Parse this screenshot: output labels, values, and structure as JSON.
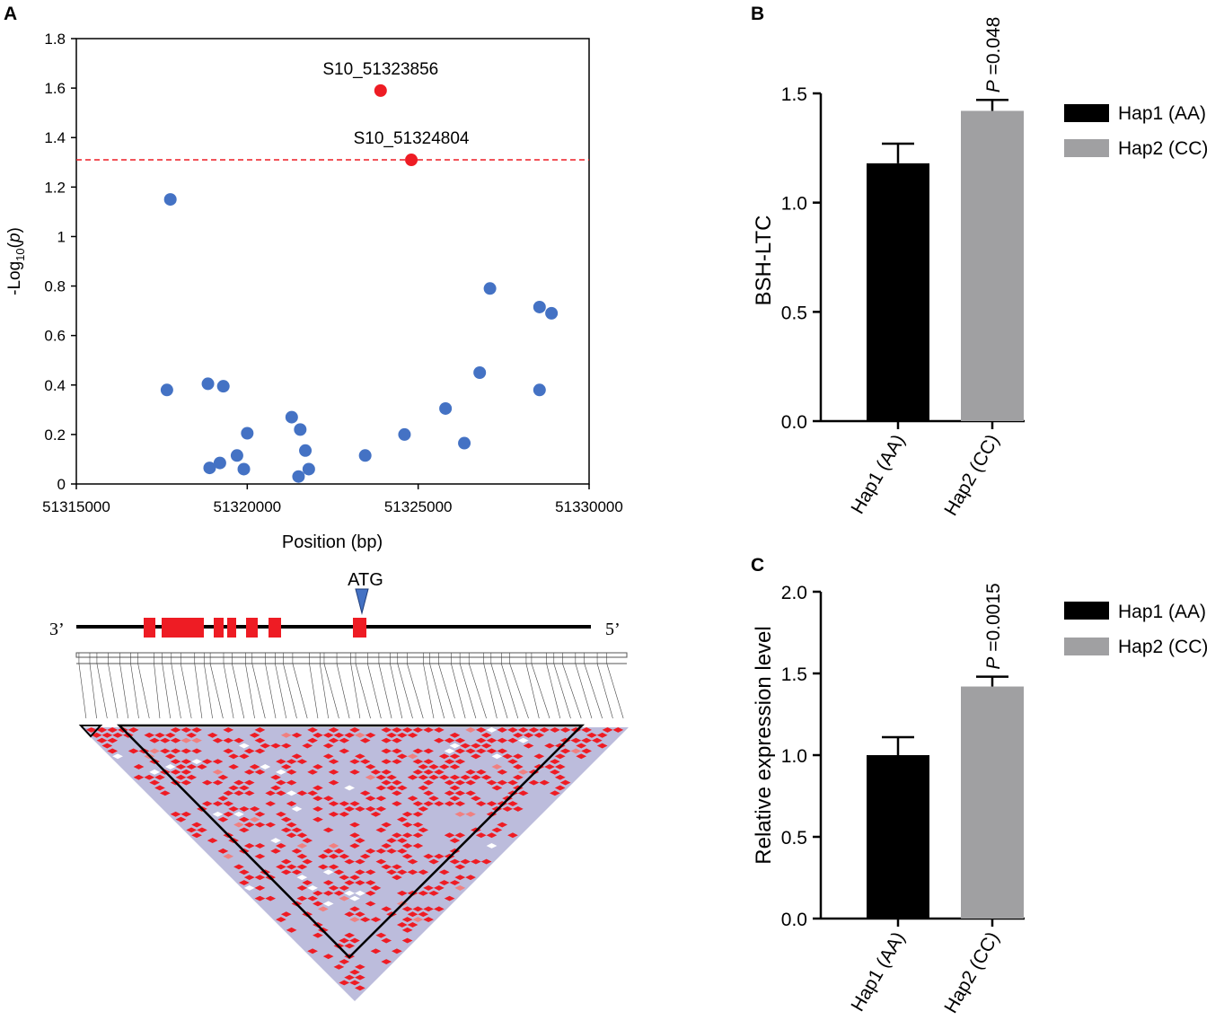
{
  "panels": {
    "a": "A",
    "b": "B",
    "c": "C"
  },
  "colors": {
    "blue": "#4472c4",
    "red": "#ee1c24",
    "hap1": "#000000",
    "hap2": "#a0a0a2",
    "ld_bg": "#bcbcdc",
    "ld_red": "#ee1c24",
    "ld_pink": "#f08080"
  },
  "gene": {
    "left_label": "3’",
    "right_label": "5’",
    "atg_label": "ATG"
  },
  "chart_data": [
    {
      "id": "manhattan",
      "type": "scatter",
      "xlabel": "Position (bp)",
      "ylabel": {
        "prefix": "-Log",
        "sub": "10",
        "mid": "(",
        "italic": "p",
        "suffix": ")"
      },
      "xlim": [
        51315000,
        51330000
      ],
      "ylim": [
        0,
        1.8
      ],
      "xticks": [
        51315000,
        51320000,
        51325000,
        51330000
      ],
      "xtick_labels": [
        "51315000",
        "51320000",
        "51325000",
        "51330000"
      ],
      "yticks": [
        0,
        0.2,
        0.4,
        0.6,
        0.8,
        1,
        1.2,
        1.4,
        1.6,
        1.8
      ],
      "ytick_labels": [
        "0",
        "0.2",
        "0.4",
        "0.6",
        "0.8",
        "1",
        "1.2",
        "1.4",
        "1.6",
        "1.8"
      ],
      "threshold": 1.31,
      "points": [
        {
          "x": 51317750,
          "y": 1.15
        },
        {
          "x": 51317650,
          "y": 0.38
        },
        {
          "x": 51318850,
          "y": 0.405
        },
        {
          "x": 51319300,
          "y": 0.395
        },
        {
          "x": 51318900,
          "y": 0.065
        },
        {
          "x": 51319200,
          "y": 0.085
        },
        {
          "x": 51319700,
          "y": 0.115
        },
        {
          "x": 51319900,
          "y": 0.06
        },
        {
          "x": 51320000,
          "y": 0.205
        },
        {
          "x": 51321300,
          "y": 0.27
        },
        {
          "x": 51321550,
          "y": 0.22
        },
        {
          "x": 51321700,
          "y": 0.135
        },
        {
          "x": 51321800,
          "y": 0.06
        },
        {
          "x": 51321500,
          "y": 0.03
        },
        {
          "x": 51323450,
          "y": 0.115
        },
        {
          "x": 51324600,
          "y": 0.2
        },
        {
          "x": 51325800,
          "y": 0.305
        },
        {
          "x": 51326350,
          "y": 0.165
        },
        {
          "x": 51326800,
          "y": 0.45
        },
        {
          "x": 51327100,
          "y": 0.79
        },
        {
          "x": 51328550,
          "y": 0.715
        },
        {
          "x": 51328900,
          "y": 0.69
        },
        {
          "x": 51328550,
          "y": 0.38
        }
      ],
      "highlights": [
        {
          "x": 51323900,
          "y": 1.59,
          "label": "S10_51323856"
        },
        {
          "x": 51324800,
          "y": 1.31,
          "label": "S10_51324804"
        }
      ]
    },
    {
      "id": "bsh",
      "type": "bar",
      "ylabel": "BSH-LTC",
      "categories": [
        "Hap1 (AA)",
        "Hap2 (CC)"
      ],
      "values": [
        1.18,
        1.42
      ],
      "errors": [
        0.09,
        0.05
      ],
      "ylim": [
        0,
        1.5
      ],
      "yticks": [
        0,
        0.5,
        1.0,
        1.5
      ],
      "ytick_labels": [
        "0.0",
        "0.5",
        "1.0",
        "1.5"
      ],
      "p_italic": "P",
      "p_value": " =0.048",
      "legend": [
        "Hap1 (AA)",
        "Hap2 (CC)"
      ]
    },
    {
      "id": "expr",
      "type": "bar",
      "ylabel": "Relative expression level",
      "categories": [
        "Hap1 (AA)",
        "Hap2 (CC)"
      ],
      "values": [
        1.0,
        1.42
      ],
      "errors": [
        0.11,
        0.06
      ],
      "ylim": [
        0,
        2.0
      ],
      "yticks": [
        0,
        0.5,
        1.0,
        1.5,
        2.0
      ],
      "ytick_labels": [
        "0.0",
        "0.5",
        "1.0",
        "1.5",
        "2.0"
      ],
      "p_italic": "P",
      "p_value": " =0.0015",
      "legend": [
        "Hap1 (AA)",
        "Hap2 (CC)"
      ]
    }
  ]
}
